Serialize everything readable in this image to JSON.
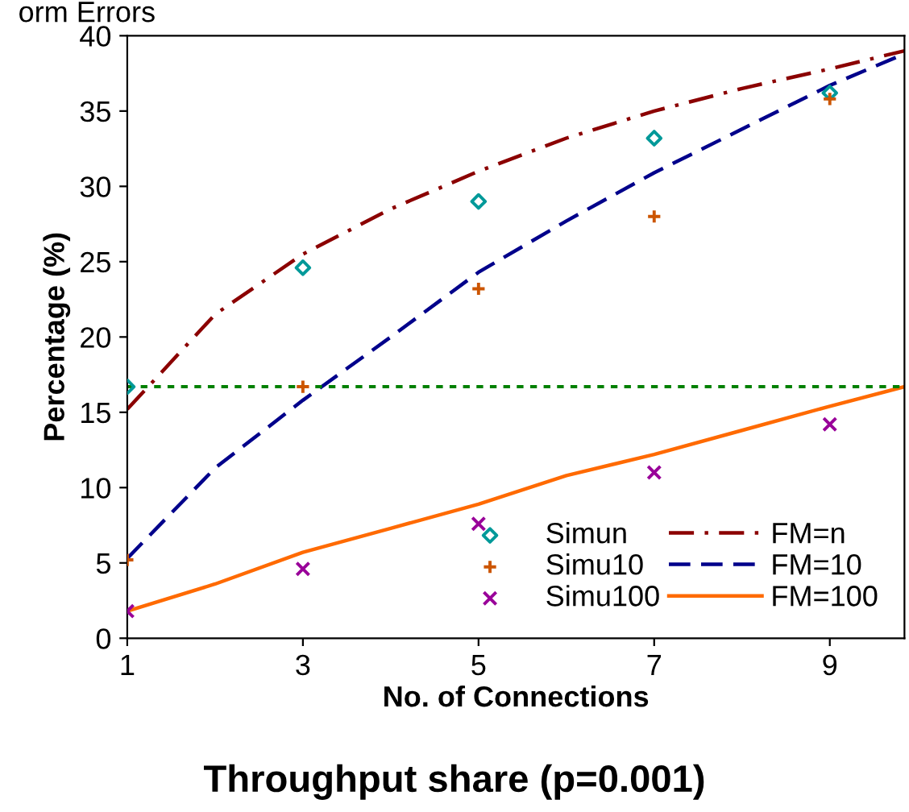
{
  "chart_data": {
    "type": "line",
    "title": "Throughput share (p=0.001)",
    "annotations": [
      "orm Errors"
    ],
    "xlabel": "No. of Connections",
    "ylabel": "Percentage (%)",
    "xlim": [
      1,
      9.85
    ],
    "xticks": [
      1,
      3,
      5,
      7,
      9
    ],
    "ylim": [
      0,
      40
    ],
    "yticks": [
      0,
      5,
      10,
      15,
      20,
      25,
      30,
      35,
      40
    ],
    "grid": false,
    "legend": "bottom right",
    "series": [
      {
        "name": "Simun",
        "type": "scatter",
        "marker": "diamond",
        "color": "#009999",
        "x": [
          1,
          3,
          5,
          7,
          9
        ],
        "values": [
          16.7,
          24.6,
          29,
          33.2,
          36.2
        ]
      },
      {
        "name": "Simu10",
        "type": "scatter",
        "marker": "plus",
        "color": "#cc5500",
        "x": [
          1,
          3,
          5,
          7,
          9
        ],
        "values": [
          5.2,
          16.7,
          23.2,
          28,
          35.8
        ]
      },
      {
        "name": "Simu100",
        "type": "scatter",
        "marker": "cross",
        "color": "#990099",
        "x": [
          1,
          3,
          5,
          7,
          9
        ],
        "values": [
          1.8,
          4.6,
          7.6,
          11,
          14.2
        ]
      },
      {
        "name": "FM=n",
        "line_style": "dashdot",
        "color": "#8b0000",
        "x": [
          1,
          2,
          3,
          4,
          5,
          6,
          7,
          8,
          9,
          9.85
        ],
        "values": [
          15.2,
          21.5,
          25.5,
          28.5,
          31,
          33.2,
          35,
          36.5,
          37.8,
          39
        ]
      },
      {
        "name": "FM=10",
        "line_style": "dashed",
        "color": "#00008b",
        "x": [
          1,
          2,
          3,
          4,
          5,
          6,
          7,
          8,
          9,
          9.85
        ],
        "values": [
          5.3,
          11.3,
          15.8,
          20,
          24.3,
          27.7,
          30.9,
          33.8,
          36.7,
          38.8
        ]
      },
      {
        "name": "FM=100",
        "line_style": "solid",
        "color": "#ff6a00",
        "x": [
          1,
          2,
          3,
          4,
          5,
          6,
          7,
          8,
          9,
          9.85
        ],
        "values": [
          1.8,
          3.6,
          5.7,
          7.3,
          8.9,
          10.8,
          12.2,
          13.8,
          15.4,
          16.7
        ]
      }
    ],
    "ref_lines": [
      {
        "axis": "y",
        "value": 16.7,
        "color": "#008000",
        "line_style": "dotted"
      }
    ]
  }
}
